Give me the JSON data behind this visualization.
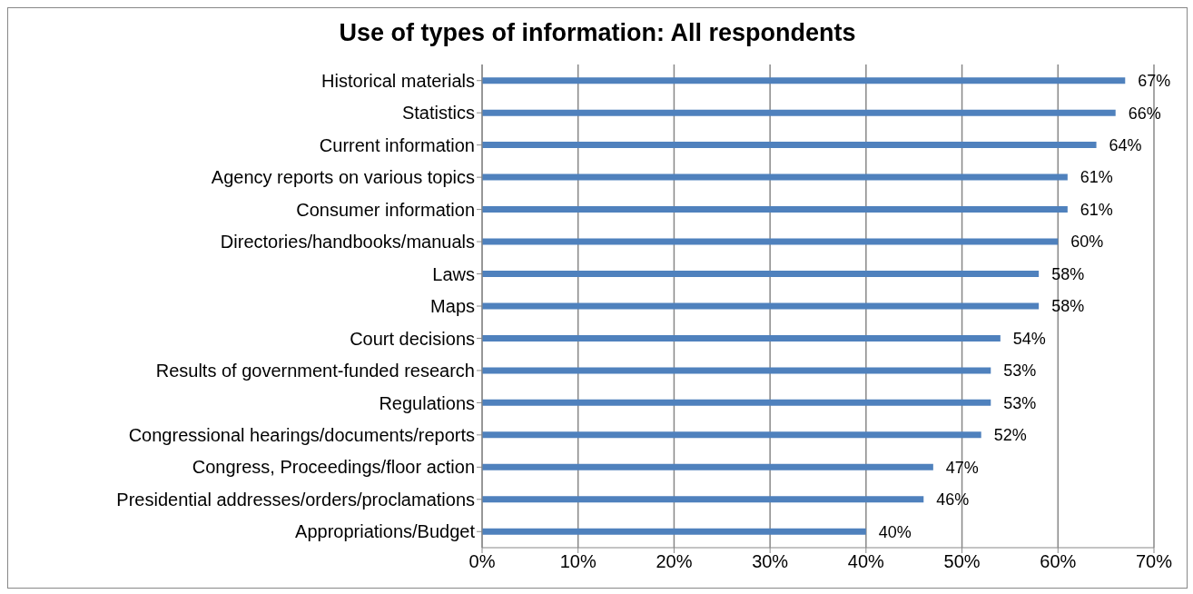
{
  "chart_data": {
    "type": "bar",
    "orientation": "horizontal",
    "title": "Use of types of information: All respondents",
    "categories": [
      "Historical materials",
      "Statistics",
      "Current information",
      "Agency reports on various topics",
      "Consumer information",
      "Directories/handbooks/manuals",
      "Laws",
      "Maps",
      "Court decisions",
      "Results of government-funded research",
      "Regulations",
      "Congressional hearings/documents/reports",
      "Congress, Proceedings/floor action",
      "Presidential addresses/orders/proclamations",
      "Appropriations/Budget"
    ],
    "values": [
      67,
      66,
      64,
      61,
      61,
      60,
      58,
      58,
      54,
      53,
      53,
      52,
      47,
      46,
      40
    ],
    "value_labels": [
      "67%",
      "66%",
      "64%",
      "61%",
      "61%",
      "60%",
      "58%",
      "58%",
      "54%",
      "53%",
      "53%",
      "52%",
      "47%",
      "46%",
      "40%"
    ],
    "color": "#4f81bd",
    "xlim": [
      0,
      70
    ],
    "xticks": [
      {
        "value": 0,
        "label": "0%"
      },
      {
        "value": 10,
        "label": "10%"
      },
      {
        "value": 20,
        "label": "20%"
      },
      {
        "value": 30,
        "label": "30%"
      },
      {
        "value": 40,
        "label": "40%"
      },
      {
        "value": 50,
        "label": "50%"
      },
      {
        "value": 60,
        "label": "60%"
      },
      {
        "value": 70,
        "label": "70%"
      }
    ],
    "grid": "x",
    "legend": false
  }
}
